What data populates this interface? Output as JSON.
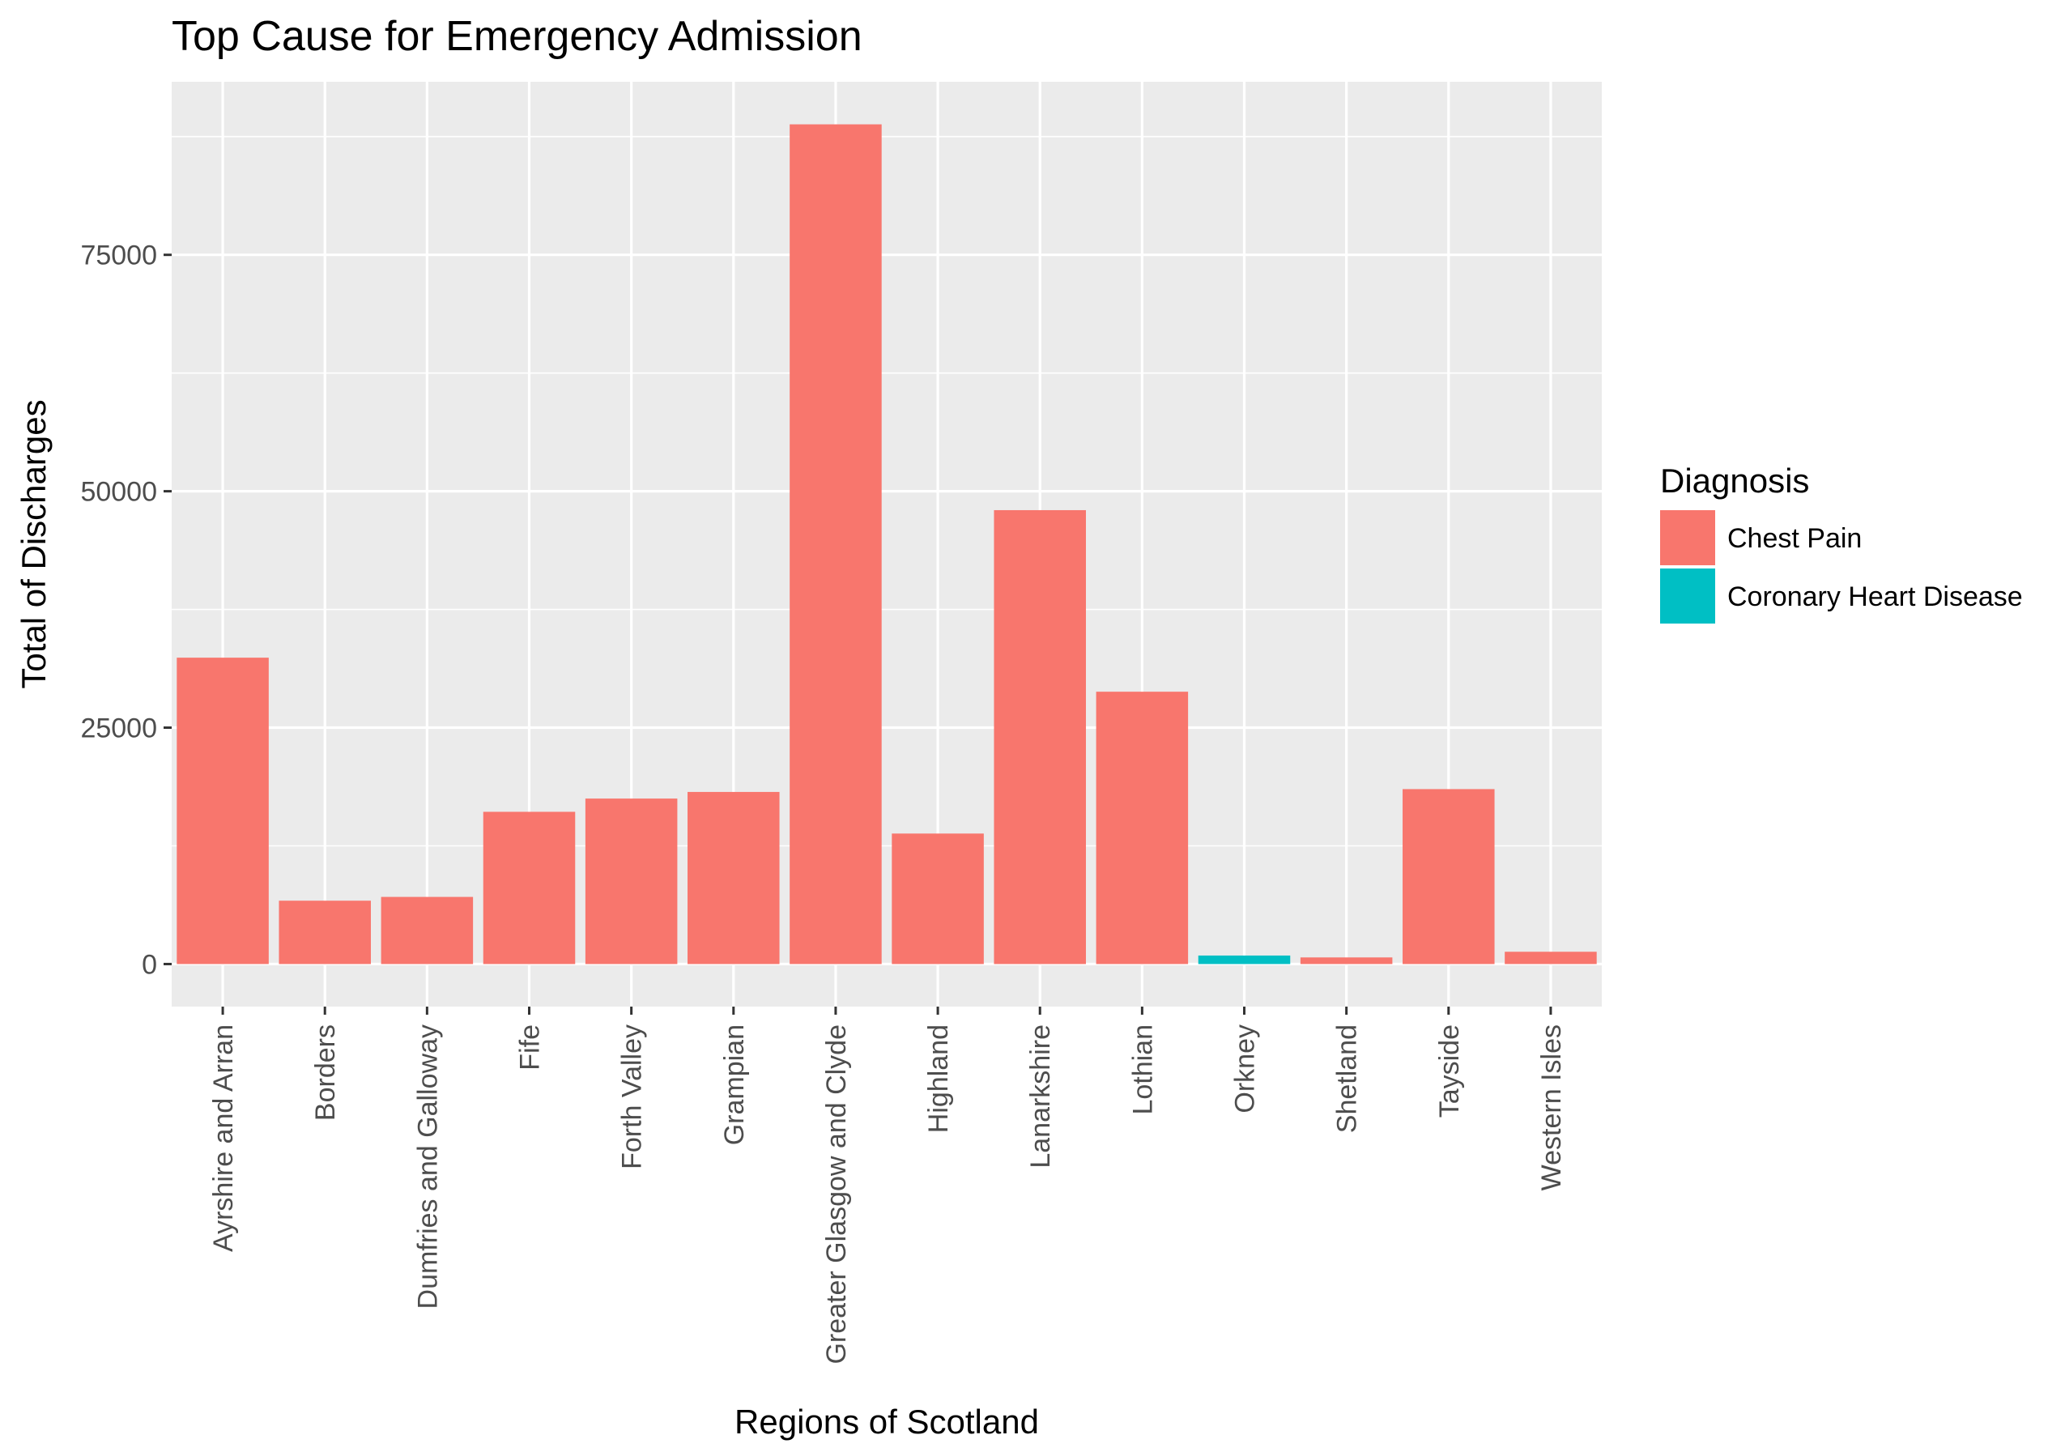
{
  "chart_data": {
    "type": "bar",
    "title": "Top Cause for Emergency Admission",
    "xlabel": "Regions of Scotland",
    "ylabel": "Total of Discharges",
    "ylim": [
      -4500,
      93300
    ],
    "yticks": [
      0,
      25000,
      50000,
      75000
    ],
    "ytick_labels": [
      "0",
      "25000",
      "50000",
      "75000"
    ],
    "grid": true,
    "categories": [
      "Ayrshire and Arran",
      "Borders",
      "Dumfries and Galloway",
      "Fife",
      "Forth Valley",
      "Grampian",
      "Greater Glasgow and Clyde",
      "Highland",
      "Lanarkshire",
      "Lothian",
      "Orkney",
      "Shetland",
      "Tayside",
      "Western Isles"
    ],
    "values": [
      32400,
      6700,
      7100,
      16100,
      17500,
      18200,
      88800,
      13800,
      48000,
      28800,
      900,
      700,
      18500,
      1300
    ],
    "diagnosis": [
      "Chest Pain",
      "Chest Pain",
      "Chest Pain",
      "Chest Pain",
      "Chest Pain",
      "Chest Pain",
      "Chest Pain",
      "Chest Pain",
      "Chest Pain",
      "Chest Pain",
      "Coronary Heart Disease",
      "Chest Pain",
      "Chest Pain",
      "Chest Pain"
    ],
    "legend": {
      "title": "Diagnosis",
      "position": "right",
      "entries": [
        {
          "label": "Chest Pain",
          "color": "#F8766D"
        },
        {
          "label": "Coronary Heart Disease",
          "color": "#00BFC4"
        }
      ]
    },
    "colors": {
      "panel": "#EBEBEB",
      "grid": "#FFFFFF",
      "tick_text": "#4D4D4D"
    }
  }
}
